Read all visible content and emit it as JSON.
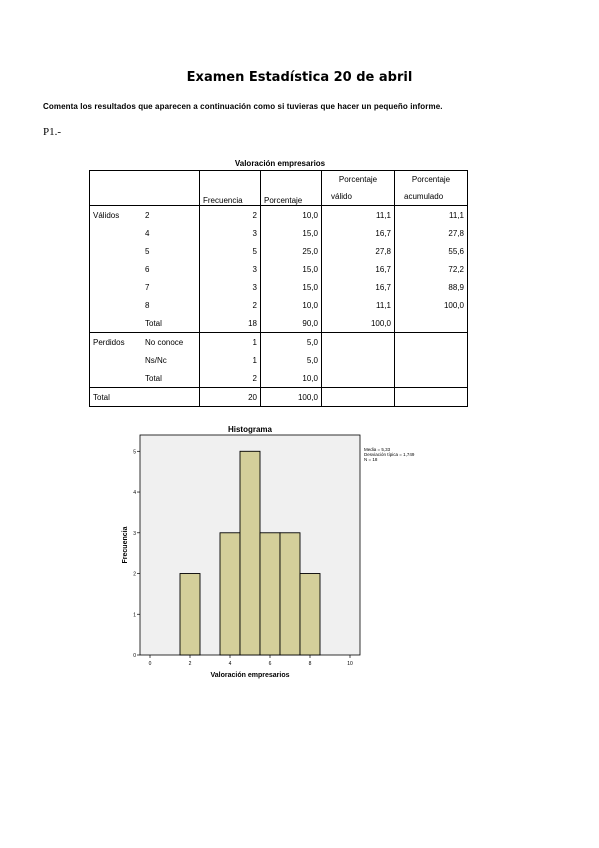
{
  "document": {
    "title": "Examen Estadística 20 de abril",
    "instruction": "Comenta los resultados que aparecen a continuación como si tuvieras que hacer un pequeño informe.",
    "question_label": "P1.-"
  },
  "table": {
    "title": "Valoración empresarios",
    "headers": {
      "frecuencia": "Frecuencia",
      "porcentaje": "Porcentaje",
      "valido_1": "Porcentaje",
      "valido_2": "válido",
      "acumulado_1": "Porcentaje",
      "acumulado_2": "acumulado"
    },
    "rows": [
      {
        "group": "Válidos",
        "label": "2",
        "freq": "2",
        "pct": "10,0",
        "valid": "11,1",
        "cum": "11,1"
      },
      {
        "group": "",
        "label": "4",
        "freq": "3",
        "pct": "15,0",
        "valid": "16,7",
        "cum": "27,8"
      },
      {
        "group": "",
        "label": "5",
        "freq": "5",
        "pct": "25,0",
        "valid": "27,8",
        "cum": "55,6"
      },
      {
        "group": "",
        "label": "6",
        "freq": "3",
        "pct": "15,0",
        "valid": "16,7",
        "cum": "72,2"
      },
      {
        "group": "",
        "label": "7",
        "freq": "3",
        "pct": "15,0",
        "valid": "16,7",
        "cum": "88,9"
      },
      {
        "group": "",
        "label": "8",
        "freq": "2",
        "pct": "10,0",
        "valid": "11,1",
        "cum": "100,0"
      },
      {
        "group": "",
        "label": "Total",
        "freq": "18",
        "pct": "90,0",
        "valid": "100,0",
        "cum": ""
      },
      {
        "group": "Perdidos",
        "label": "No conoce",
        "freq": "1",
        "pct": "5,0",
        "valid": "",
        "cum": ""
      },
      {
        "group": "",
        "label": "Ns/Nc",
        "freq": "1",
        "pct": "5,0",
        "valid": "",
        "cum": ""
      },
      {
        "group": "",
        "label": "Total",
        "freq": "2",
        "pct": "10,0",
        "valid": "",
        "cum": ""
      },
      {
        "group": "Total",
        "label": "",
        "freq": "20",
        "pct": "100,0",
        "valid": "",
        "cum": ""
      }
    ]
  },
  "chart_data": {
    "type": "bar",
    "title": "Histograma",
    "xlabel": "Valoración empresarios",
    "ylabel": "Frecuencia",
    "bins": [
      {
        "from": 1.5,
        "to": 2.5,
        "value": 2
      },
      {
        "from": 3.5,
        "to": 4.5,
        "value": 3
      },
      {
        "from": 4.5,
        "to": 5.5,
        "value": 5
      },
      {
        "from": 5.5,
        "to": 6.5,
        "value": 3
      },
      {
        "from": 6.5,
        "to": 7.5,
        "value": 3
      },
      {
        "from": 7.5,
        "to": 8.5,
        "value": 2
      }
    ],
    "xlim": [
      -0.5,
      10.5
    ],
    "ylim": [
      0,
      5.4
    ],
    "xticks": [
      "0",
      "2",
      "4",
      "6",
      "8",
      "10"
    ],
    "xtick_values": [
      0,
      2,
      4,
      6,
      8,
      10
    ],
    "yticks": [
      "0",
      "1",
      "2",
      "3",
      "4",
      "5"
    ],
    "ytick_values": [
      0,
      1,
      2,
      3,
      4,
      5
    ],
    "stats": [
      "Media = 5,33",
      "Desviación típica = 1,749",
      "N = 18"
    ],
    "colors": {
      "bar": "#d4cf9a",
      "plot_bg": "#f0f0f0"
    }
  }
}
